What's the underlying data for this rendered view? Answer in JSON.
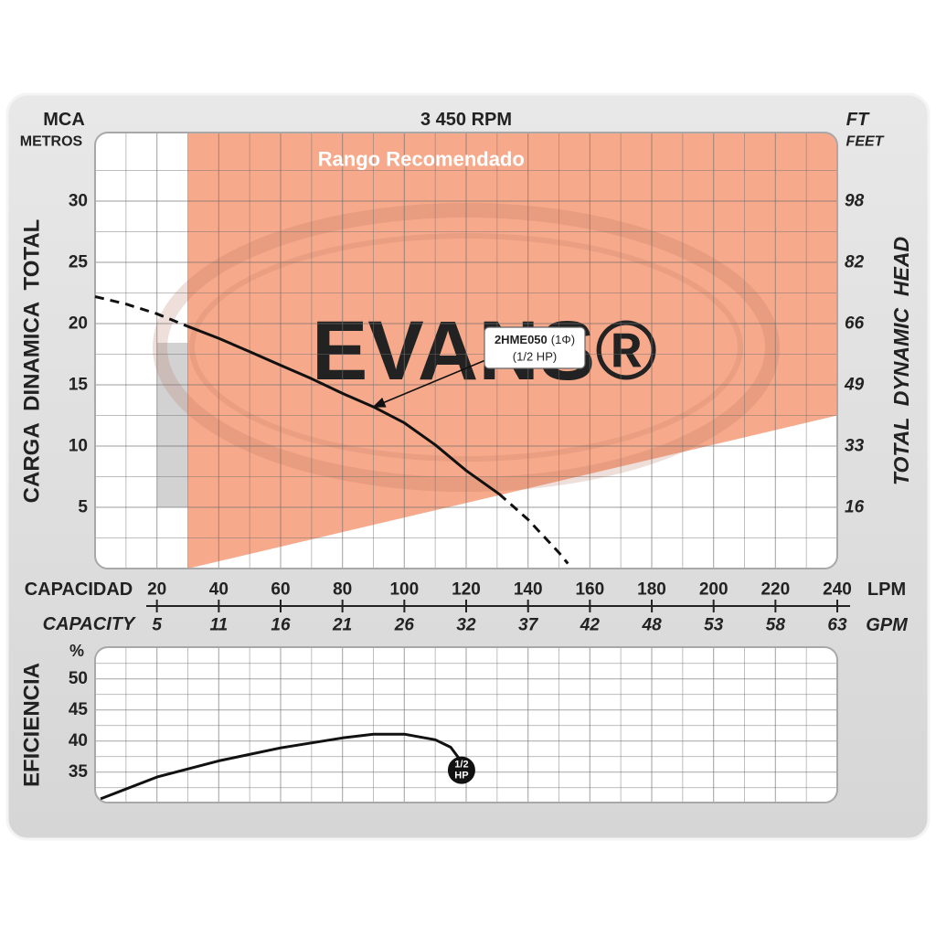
{
  "chart_data": [
    {
      "type": "line",
      "title": "3 450 RPM",
      "y_unit": "MCA",
      "y_unit_sub": "METROS",
      "y_label": "CARGA  DINAMICA  TOTAL",
      "y2_unit": "FT",
      "y2_unit_sub": "FEET",
      "y2_label": "TOTAL  DYNAMIC  HEAD",
      "x_label": "CAPACIDAD",
      "x_unit": "LPM",
      "x2_label": "CAPACITY",
      "x2_unit": "GPM",
      "xlim": [
        0,
        240
      ],
      "xticks": [
        20,
        40,
        60,
        80,
        100,
        120,
        140,
        160,
        180,
        200,
        220,
        240
      ],
      "xminor": [
        10,
        30,
        50,
        70,
        90,
        110,
        130,
        150,
        170,
        190,
        210,
        230
      ],
      "x2lim": [
        0,
        63.4
      ],
      "x2ticks": [
        {
          "value": 5.28,
          "label": "5"
        },
        {
          "value": 10.57,
          "label": "11"
        },
        {
          "value": 15.85,
          "label": "16"
        },
        {
          "value": 21.13,
          "label": "21"
        },
        {
          "value": 26.42,
          "label": "26"
        },
        {
          "value": 31.7,
          "label": "32"
        },
        {
          "value": 36.99,
          "label": "37"
        },
        {
          "value": 42.27,
          "label": "42"
        },
        {
          "value": 47.56,
          "label": "48"
        },
        {
          "value": 52.84,
          "label": "53"
        },
        {
          "value": 58.12,
          "label": "58"
        },
        {
          "value": 63.4,
          "label": "63"
        }
      ],
      "ylim": [
        0,
        35.6
      ],
      "yticks": [
        5,
        10,
        15,
        20,
        25,
        30
      ],
      "yminor": [
        2.5,
        7.5,
        12.5,
        17.5,
        22.5,
        27.5,
        32.5
      ],
      "y2lim": [
        0,
        116.8
      ],
      "y2ticks": [
        {
          "value": 16.4,
          "label": "16"
        },
        {
          "value": 32.8,
          "label": "33"
        },
        {
          "value": 49.2,
          "label": "49"
        },
        {
          "value": 65.6,
          "label": "66"
        },
        {
          "value": 82,
          "label": "82"
        },
        {
          "value": 98.4,
          "label": "98"
        }
      ],
      "grid": true,
      "recommended_range": {
        "label": "Rango Recomendado",
        "color": "#f7a98b",
        "x": [
          30,
          240
        ],
        "lower": [
          0,
          12.5
        ]
      },
      "watermark": "EVANS®",
      "series": [
        {
          "style": "dashed",
          "color": "#111111",
          "x": [
            0,
            10,
            20,
            29.7
          ],
          "values": [
            22.2,
            21.6,
            20.8,
            19.8
          ]
        },
        {
          "style": "solid",
          "color": "#111111",
          "x": [
            29.7,
            40,
            50,
            60,
            70,
            80,
            90,
            100,
            110,
            120,
            130.6
          ],
          "values": [
            19.8,
            18.8,
            17.7,
            16.6,
            15.5,
            14.3,
            13.2,
            11.9,
            10.1,
            8.0,
            6.1
          ]
        },
        {
          "style": "dashed",
          "color": "#111111",
          "x": [
            130.6,
            140,
            150,
            152.9
          ],
          "values": [
            6.1,
            4.0,
            1.3,
            0.4
          ]
        }
      ],
      "annotation": {
        "model": "2HME050",
        "phase": "(1Φ)",
        "power": "(1/2 HP)",
        "x": 90,
        "y": 13.2
      }
    },
    {
      "type": "line",
      "y_label": "EFICIENCIA",
      "y_unit": "%",
      "xlim": [
        0,
        240
      ],
      "ylim": [
        30.1,
        55.1
      ],
      "yticks": [
        35,
        40,
        45,
        50
      ],
      "yminor": [
        32.5,
        37.5,
        42.5,
        47.5,
        52.5
      ],
      "grid": true,
      "series": [
        {
          "color": "#111111",
          "x": [
            1.8,
            20,
            40,
            60,
            80,
            90,
            100,
            110,
            115,
            118,
            118.5
          ],
          "values": [
            30.7,
            34.2,
            36.8,
            38.9,
            40.5,
            41.1,
            41.1,
            40.2,
            39.0,
            37.0,
            35.3
          ]
        }
      ],
      "marker": {
        "label_top": "1/2",
        "label_bottom": "HP"
      }
    }
  ]
}
